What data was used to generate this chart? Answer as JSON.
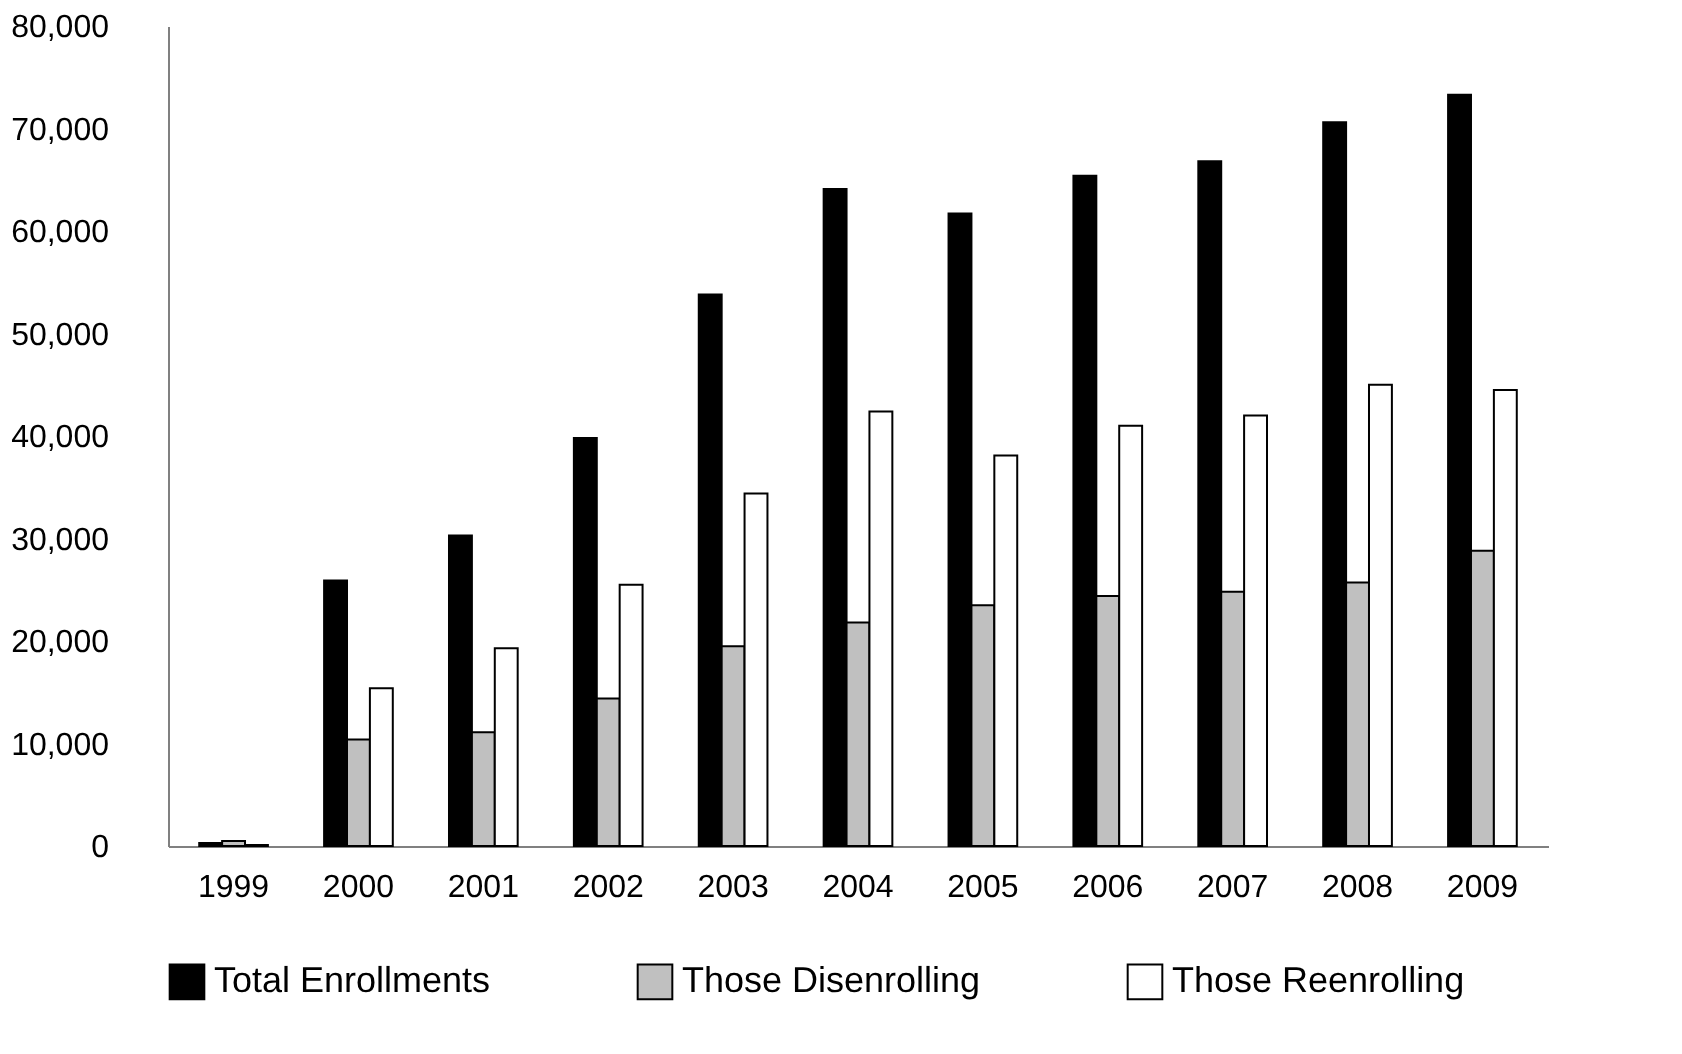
{
  "chart_data": {
    "type": "bar",
    "categories": [
      "1999",
      "2000",
      "2001",
      "2002",
      "2003",
      "2004",
      "2005",
      "2006",
      "2007",
      "2008",
      "2009"
    ],
    "series": [
      {
        "name": "Total Enrollments",
        "color": "#000000",
        "values": [
          300,
          25900,
          30300,
          39800,
          53800,
          64100,
          61700,
          65400,
          66800,
          70600,
          73300
        ]
      },
      {
        "name": "Those Disenrolling",
        "color": "#c0c0c0",
        "values": [
          500,
          10400,
          11100,
          14400,
          19500,
          21800,
          23500,
          24400,
          24800,
          25700,
          28800
        ]
      },
      {
        "name": "Those Reenrolling",
        "color": "#ffffff",
        "values": [
          100,
          15400,
          19300,
          25500,
          34400,
          42400,
          38100,
          41000,
          42000,
          45000,
          44500
        ]
      }
    ],
    "ylim": [
      0,
      80000
    ],
    "yticks": [
      0,
      {
        "value": 10000,
        "label": "10,000"
      },
      {
        "value": 20000,
        "label": "20,000"
      },
      {
        "value": 30000,
        "label": "30,000"
      },
      {
        "value": 40000,
        "label": "40,000"
      },
      {
        "value": 50000,
        "label": "50,000"
      },
      {
        "value": 60000,
        "label": "60,000"
      },
      {
        "value": 70000,
        "label": "70,000"
      },
      {
        "value": 80000,
        "label": "80,000"
      }
    ],
    "grid": false,
    "legend": "bottom"
  }
}
